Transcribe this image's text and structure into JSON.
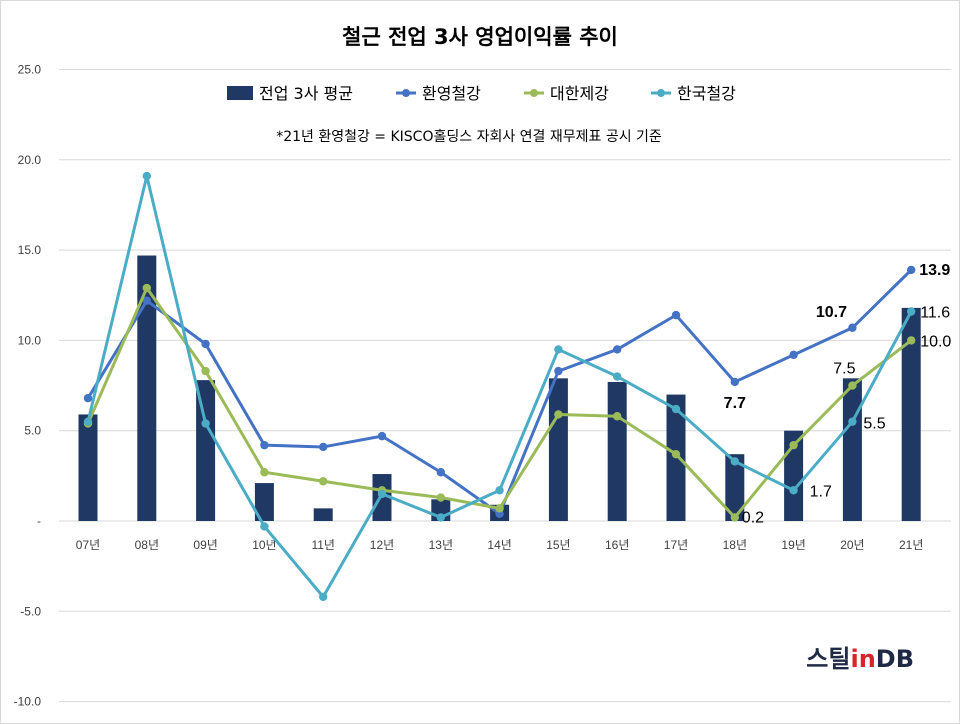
{
  "chart_data": {
    "type": "bar",
    "title": "철근 전업 3사 영업이익률 추이",
    "note": "*21년 환영철강 = KISCO홀딩스 자회사 연결 재무제표 공시 기준",
    "categories": [
      "07년",
      "08년",
      "09년",
      "10년",
      "11년",
      "12년",
      "13년",
      "14년",
      "15년",
      "16년",
      "17년",
      "18년",
      "19년",
      "20년",
      "21년"
    ],
    "ylim": [
      -10,
      25
    ],
    "yticks": [
      -10,
      -5,
      0,
      5,
      10,
      15,
      20,
      25
    ],
    "ytick_labels": [
      "-10.0",
      "-5.0",
      "-",
      "5.0",
      "10.0",
      "15.0",
      "20.0",
      "25.0"
    ],
    "grid": true,
    "legend_position": "top",
    "series": [
      {
        "name": "전업 3사 평균",
        "type": "bar",
        "color": "#203864",
        "values": [
          5.9,
          14.7,
          7.8,
          2.1,
          0.7,
          2.6,
          1.2,
          0.9,
          7.9,
          7.7,
          7.0,
          3.7,
          5.0,
          7.9,
          11.8
        ]
      },
      {
        "name": "환영철강",
        "type": "line",
        "color": "#4472c4",
        "values": [
          6.8,
          12.2,
          9.8,
          4.2,
          4.1,
          4.7,
          2.7,
          0.4,
          8.3,
          9.5,
          11.4,
          7.7,
          9.2,
          10.7,
          13.9
        ]
      },
      {
        "name": "대한제강",
        "type": "line",
        "color": "#9bbb59",
        "values": [
          5.4,
          12.9,
          8.3,
          2.7,
          2.2,
          1.7,
          1.3,
          0.7,
          5.9,
          5.8,
          3.7,
          0.2,
          4.2,
          7.5,
          10.0
        ]
      },
      {
        "name": "한국철강",
        "type": "line",
        "color": "#4bacc6",
        "values": [
          5.5,
          19.1,
          5.4,
          -0.3,
          -4.2,
          1.5,
          0.2,
          1.7,
          9.5,
          8.0,
          6.2,
          3.3,
          1.7,
          5.5,
          11.6
        ]
      }
    ],
    "data_labels": [
      {
        "series": 1,
        "index": 11,
        "text": "7.7",
        "bold": true
      },
      {
        "series": 1,
        "index": 13,
        "text": "10.7",
        "bold": true
      },
      {
        "series": 1,
        "index": 14,
        "text": "13.9",
        "bold": true
      },
      {
        "series": 2,
        "index": 11,
        "text": "0.2",
        "bold": false
      },
      {
        "series": 2,
        "index": 13,
        "text": "7.5",
        "bold": false
      },
      {
        "series": 2,
        "index": 14,
        "text": "10.0",
        "bold": false
      },
      {
        "series": 3,
        "index": 12,
        "text": "1.7",
        "bold": false
      },
      {
        "series": 3,
        "index": 13,
        "text": "5.5",
        "bold": false
      },
      {
        "series": 3,
        "index": 14,
        "text": "11.6",
        "bold": false
      }
    ]
  },
  "logo": {
    "part1": "스틸",
    "part2": "in",
    "part3": "DB"
  }
}
